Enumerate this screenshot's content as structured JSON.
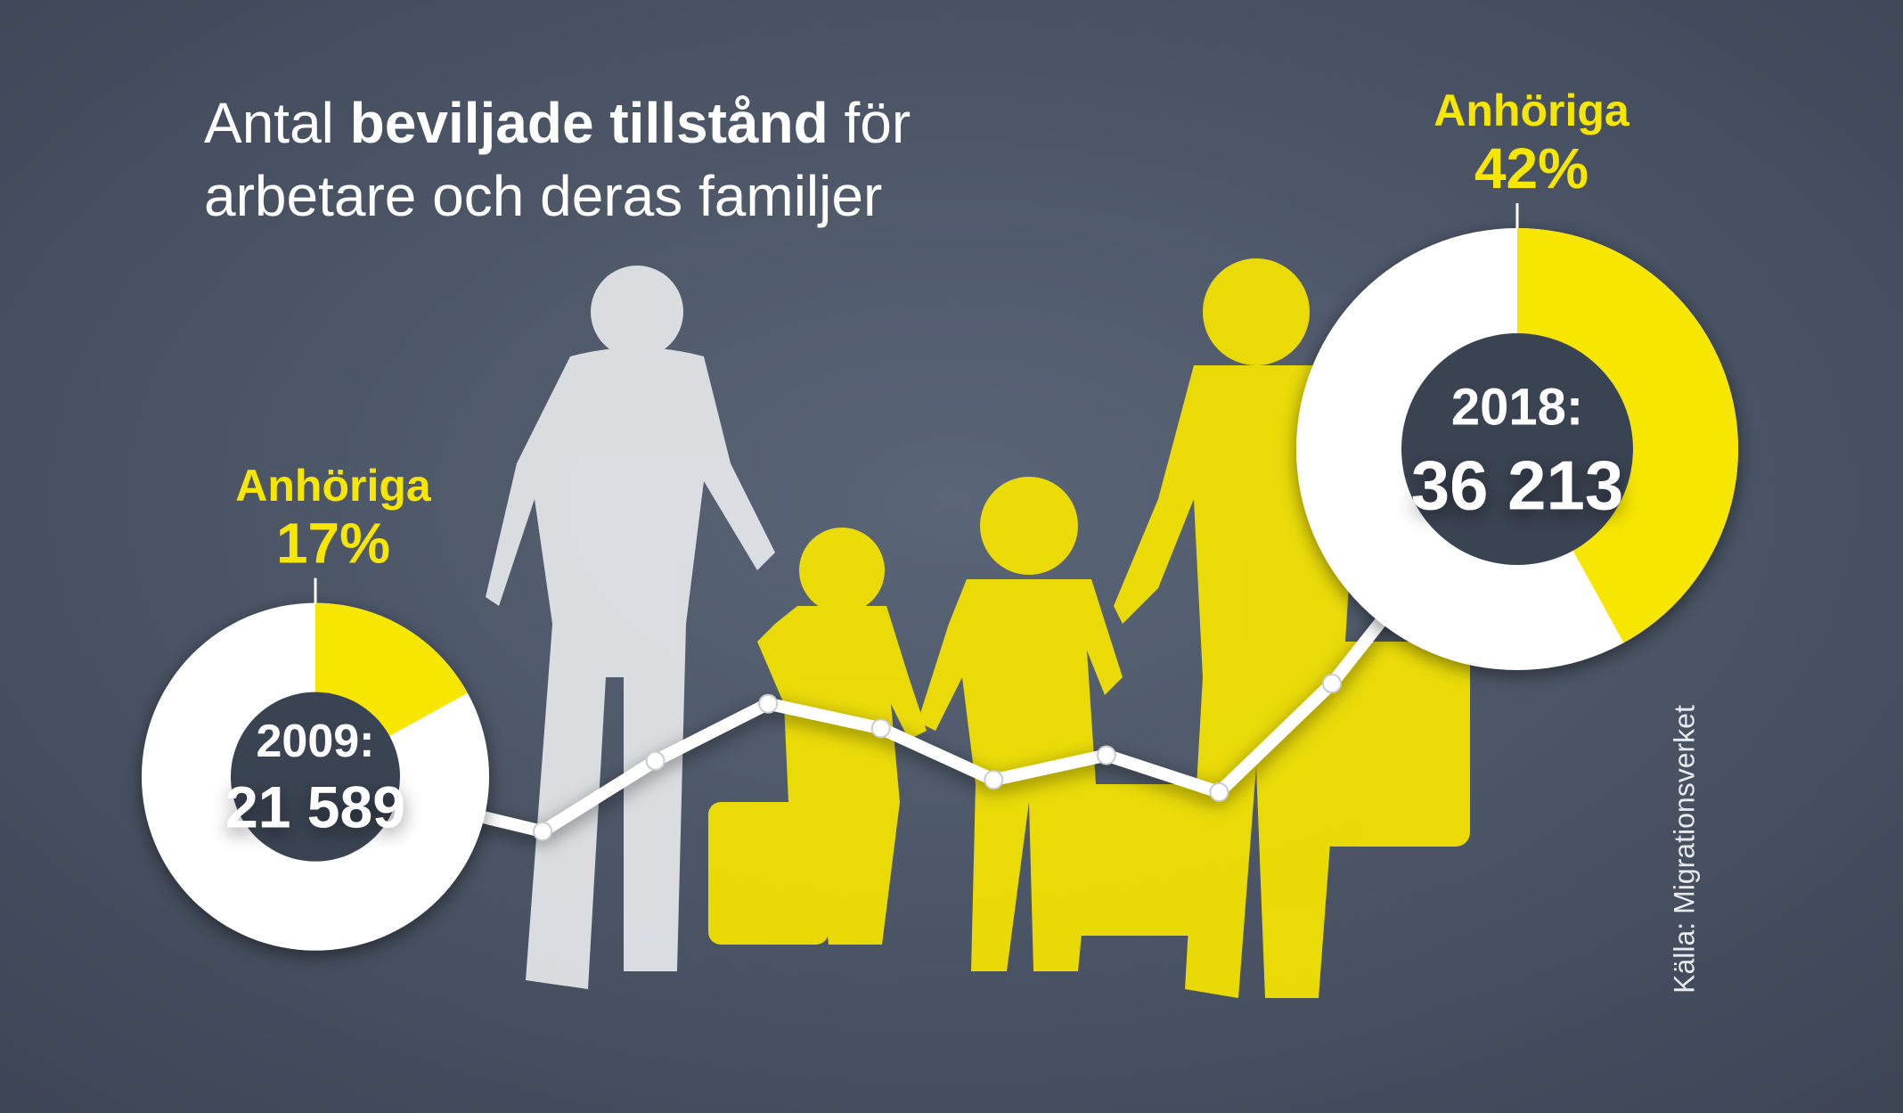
{
  "chart_data": [
    {
      "type": "line",
      "title_parts": [
        "Antal",
        "beviljade tillstånd",
        "för",
        "arbetare och deras familjer"
      ],
      "source": "Källa: Migrationsverket",
      "categories": [
        "2009:",
        null,
        null,
        null,
        null,
        null,
        null,
        null,
        null,
        "2018:"
      ],
      "values": [
        21589,
        19150,
        22300,
        24850,
        23750,
        21450,
        22550,
        20900,
        25750,
        36213
      ],
      "value_labels": [
        "21 589",
        null,
        null,
        null,
        null,
        null,
        null,
        null,
        null,
        "36 213"
      ],
      "color": "#ffffff"
    },
    {
      "type": "donut",
      "label": "Anhöriga",
      "values": [
        17
      ],
      "value_labels": [
        "17%"
      ],
      "color": "#f7e600"
    },
    {
      "type": "donut",
      "label": "Anhöriga",
      "values": [
        42
      ],
      "value_labels": [
        "42%"
      ],
      "color": "#f7e600"
    }
  ]
}
